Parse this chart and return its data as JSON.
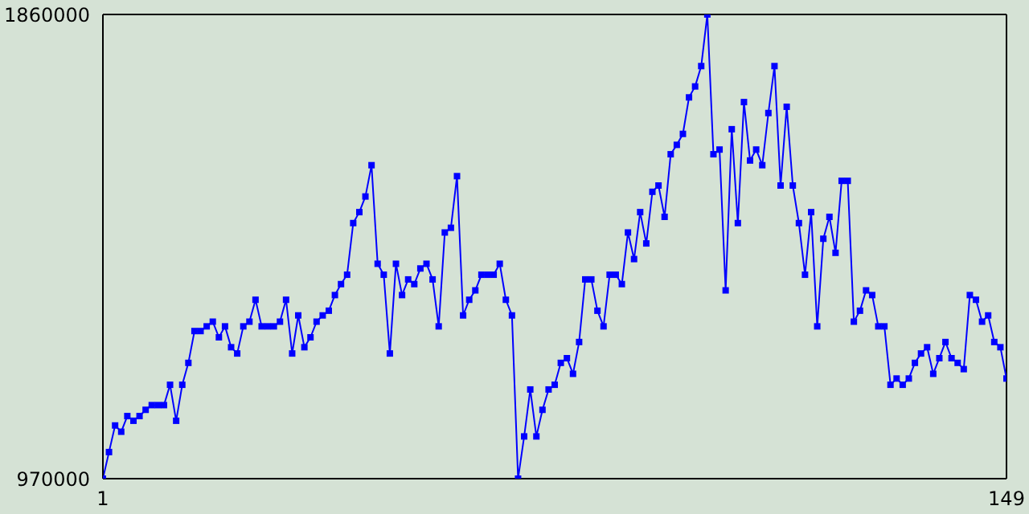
{
  "chart_data": {
    "type": "line",
    "x": [
      1,
      2,
      3,
      4,
      5,
      6,
      7,
      8,
      9,
      10,
      11,
      12,
      13,
      14,
      15,
      16,
      17,
      18,
      19,
      20,
      21,
      22,
      23,
      24,
      25,
      26,
      27,
      28,
      29,
      30,
      31,
      32,
      33,
      34,
      35,
      36,
      37,
      38,
      39,
      40,
      41,
      42,
      43,
      44,
      45,
      46,
      47,
      48,
      49,
      50,
      51,
      52,
      53,
      54,
      55,
      56,
      57,
      58,
      59,
      60,
      61,
      62,
      63,
      64,
      65,
      66,
      67,
      68,
      69,
      70,
      71,
      72,
      73,
      74,
      75,
      76,
      77,
      78,
      79,
      80,
      81,
      82,
      83,
      84,
      85,
      86,
      87,
      88,
      89,
      90,
      91,
      92,
      93,
      94,
      95,
      96,
      97,
      98,
      99,
      100,
      101,
      102,
      103,
      104,
      105,
      106,
      107,
      108,
      109,
      110,
      111,
      112,
      113,
      114,
      115,
      116,
      117,
      118,
      119,
      120,
      121,
      122,
      123,
      124,
      125,
      126,
      127,
      128,
      129,
      130,
      131,
      132,
      133,
      134,
      135,
      136,
      137,
      138,
      139,
      140,
      141,
      142,
      143,
      144,
      145,
      146,
      147,
      148,
      149
    ],
    "series": [
      {
        "color": "#0000ff",
        "values": [
          970000,
          1021000,
          1072000,
          1060000,
          1090000,
          1081000,
          1090000,
          1102000,
          1111000,
          1111000,
          1111000,
          1150000,
          1081000,
          1150000,
          1192000,
          1253000,
          1253000,
          1262000,
          1271000,
          1241000,
          1262000,
          1222000,
          1210000,
          1262000,
          1271000,
          1313000,
          1262000,
          1262000,
          1262000,
          1271000,
          1313000,
          1210000,
          1283000,
          1222000,
          1241000,
          1271000,
          1283000,
          1292000,
          1322000,
          1343000,
          1361000,
          1460000,
          1481000,
          1511000,
          1571000,
          1382000,
          1361000,
          1210000,
          1382000,
          1322000,
          1352000,
          1343000,
          1373000,
          1382000,
          1352000,
          1262000,
          1442000,
          1451000,
          1550000,
          1283000,
          1313000,
          1331000,
          1361000,
          1361000,
          1361000,
          1382000,
          1313000,
          1283000,
          970000,
          1051000,
          1141000,
          1051000,
          1102000,
          1141000,
          1150000,
          1192000,
          1201000,
          1171000,
          1232000,
          1352000,
          1352000,
          1292000,
          1262000,
          1361000,
          1361000,
          1343000,
          1442000,
          1391000,
          1481000,
          1421000,
          1520000,
          1532000,
          1472000,
          1592000,
          1610000,
          1631000,
          1701000,
          1722000,
          1761000,
          1860000,
          1592000,
          1601000,
          1331000,
          1640000,
          1460000,
          1692000,
          1580000,
          1601000,
          1571000,
          1671000,
          1761000,
          1532000,
          1683000,
          1532000,
          1460000,
          1361000,
          1481000,
          1262000,
          1430000,
          1472000,
          1403000,
          1541000,
          1541000,
          1271000,
          1292000,
          1331000,
          1322000,
          1262000,
          1262000,
          1150000,
          1162000,
          1150000,
          1162000,
          1192000,
          1210000,
          1222000,
          1171000,
          1201000,
          1232000,
          1201000,
          1192000,
          1180000,
          1322000,
          1313000,
          1271000,
          1283000,
          1232000,
          1222000,
          1162000
        ]
      }
    ],
    "xlim": [
      1,
      149
    ],
    "xticks": [
      1,
      149
    ],
    "ylim": [
      970000,
      1860000
    ],
    "yticks": [
      970000,
      1860000
    ],
    "marker": "square"
  }
}
